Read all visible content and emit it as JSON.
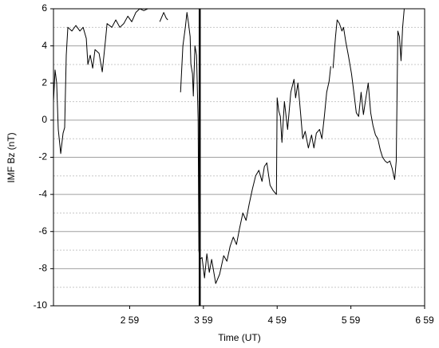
{
  "chart_data": {
    "type": "line",
    "x_label": "Time (UT)",
    "y_label": "IMF Bz (nT)",
    "xlim": [
      117,
      419
    ],
    "xticks": [
      {
        "value": 179,
        "label": "2 59"
      },
      {
        "value": 239,
        "label": "3 59"
      },
      {
        "value": 299,
        "label": "4 59"
      },
      {
        "value": 359,
        "label": "5 59"
      },
      {
        "value": 419,
        "label": "6 59"
      }
    ],
    "ylim": [
      -10,
      6
    ],
    "yticks": [
      -10,
      -8,
      -6,
      -4,
      -2,
      0,
      2,
      4,
      6
    ],
    "minor_yticks": [
      -9,
      -7,
      -5,
      -3,
      -1,
      1,
      3,
      5
    ],
    "grid": true,
    "vline": 236,
    "color": "#000000",
    "x": [
      117.0,
      118.3,
      119.6,
      120.9,
      122.9,
      124.8,
      126.1,
      127.4,
      128.7,
      132.0,
      135.2,
      138.5,
      141.1,
      143.7,
      145.0,
      146.9,
      148.9,
      150.8,
      154.1,
      156.7,
      159.3,
      160.6,
      164.5,
      167.7,
      171.0,
      174.2,
      177.5,
      180.7,
      184.0,
      187.2,
      190.5,
      193.7,
      197.0,
      200.0,
      203.5,
      206.7,
      208.7,
      210.0,
      215.0,
      220.4,
      222.3,
      224.3,
      225.6,
      226.9,
      228.2,
      228.8,
      230.1,
      230.8,
      232.1,
      233.4,
      234.7,
      235.3,
      236.0,
      237.9,
      239.9,
      241.8,
      243.8,
      245.7,
      249.0,
      252.2,
      255.5,
      258.1,
      260.7,
      263.3,
      265.9,
      268.5,
      271.1,
      273.7,
      276.3,
      278.9,
      281.5,
      284.1,
      286.7,
      288.6,
      290.6,
      293.2,
      295.8,
      298.4,
      299.0,
      300.3,
      301.6,
      302.9,
      304.9,
      307.5,
      310.1,
      312.7,
      314.0,
      315.9,
      317.9,
      319.8,
      321.8,
      324.4,
      327.0,
      328.9,
      330.9,
      333.5,
      335.4,
      337.4,
      339.3,
      341.3,
      342.6,
      343.5,
      344.5,
      346.5,
      347.8,
      349.7,
      351.7,
      353.0,
      354.9,
      356.9,
      359.5,
      361.4,
      363.4,
      365.3,
      367.3,
      369.2,
      371.2,
      373.1,
      375.1,
      377.0,
      379.0,
      380.9,
      382.9,
      384.8,
      386.8,
      388.7,
      390.7,
      392.6,
      394.6,
      395.9,
      397.2,
      398.5,
      399.8,
      401.1,
      402.4
    ],
    "values": [
      1.0,
      2.7,
      2.0,
      -0.5,
      -1.8,
      -0.7,
      -0.4,
      3.5,
      5.0,
      4.8,
      5.1,
      4.8,
      5.0,
      4.4,
      3.0,
      3.5,
      2.8,
      3.8,
      3.6,
      2.6,
      4.3,
      5.2,
      5.0,
      5.4,
      5.0,
      5.2,
      5.6,
      5.3,
      5.8,
      6.0,
      5.9,
      6.0,
      6.0,
      null,
      5.3,
      5.8,
      5.5,
      5.4,
      null,
      1.5,
      4.0,
      5.0,
      5.8,
      5.2,
      4.5,
      3.0,
      2.5,
      1.3,
      4.0,
      3.5,
      0.0,
      -7.0,
      -7.5,
      -7.4,
      -8.5,
      -7.2,
      -8.2,
      -7.5,
      -8.8,
      -8.3,
      -7.3,
      -7.6,
      -6.8,
      -6.3,
      -6.7,
      -5.8,
      -5.0,
      -5.4,
      -4.5,
      -3.7,
      -3.0,
      -2.7,
      -3.3,
      -2.5,
      -2.3,
      -3.5,
      -3.8,
      -4.0,
      1.2,
      0.5,
      0.2,
      -1.2,
      1.0,
      -0.5,
      1.5,
      2.2,
      1.2,
      2.0,
      0.5,
      -1.0,
      -0.6,
      -1.5,
      -0.8,
      -1.5,
      -0.7,
      -0.5,
      -1.0,
      0.2,
      1.5,
      2.1,
      2.9,
      null,
      2.8,
      4.5,
      5.4,
      5.2,
      4.8,
      5.0,
      4.2,
      3.5,
      2.5,
      1.5,
      0.4,
      0.2,
      1.5,
      0.3,
      1.2,
      2.0,
      0.4,
      -0.3,
      -0.8,
      -1.0,
      -1.6,
      -2.0,
      -2.2,
      -2.3,
      -2.2,
      -2.6,
      -3.2,
      -2.2,
      4.8,
      4.5,
      3.2,
      5.0,
      6.0
    ]
  }
}
